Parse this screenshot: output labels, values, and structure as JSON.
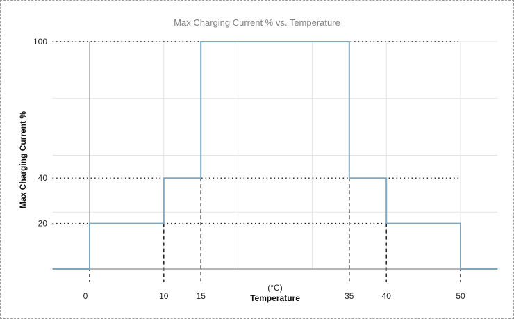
{
  "chart_data": {
    "type": "line",
    "subtype": "step",
    "title": "Max Charging Current % vs. Temperature",
    "xlabel": "Temperature",
    "xunit": "(°C)",
    "ylabel": "Max Charging Current %",
    "xlim": [
      -5,
      55
    ],
    "ylim": [
      0,
      100
    ],
    "x_ticks": [
      0,
      10,
      15,
      35,
      40,
      50
    ],
    "y_ticks": [
      20,
      40,
      100
    ],
    "grid": {
      "on": true,
      "x_lines": [
        10,
        20,
        30,
        40,
        50
      ],
      "y_lines": [
        25,
        50,
        75,
        100
      ]
    },
    "legend": null,
    "series": [
      {
        "name": "Max Charging Current %",
        "color": "#7fa8c0",
        "points": [
          {
            "x": -5,
            "y": 0
          },
          {
            "x": 0,
            "y": 0
          },
          {
            "x": 0,
            "y": 20
          },
          {
            "x": 10,
            "y": 20
          },
          {
            "x": 10,
            "y": 40
          },
          {
            "x": 15,
            "y": 40
          },
          {
            "x": 15,
            "y": 100
          },
          {
            "x": 35,
            "y": 100
          },
          {
            "x": 35,
            "y": 40
          },
          {
            "x": 40,
            "y": 40
          },
          {
            "x": 40,
            "y": 20
          },
          {
            "x": 50,
            "y": 20
          },
          {
            "x": 50,
            "y": 0
          },
          {
            "x": 55,
            "y": 0
          }
        ]
      }
    ],
    "reference_lines": {
      "horizontal_dotted": [
        {
          "y": 100,
          "x_end": 50
        },
        {
          "y": 40,
          "x_end": 50
        },
        {
          "y": 20,
          "x_end": 50
        }
      ],
      "vertical_dashed": [
        0,
        10,
        15,
        35,
        40,
        50
      ]
    }
  },
  "colors": {
    "step_line": "#7fa8c0",
    "grid": "#e3e3e3",
    "axis": "#8c8c8c",
    "reference": "#111111",
    "title": "#808080"
  }
}
